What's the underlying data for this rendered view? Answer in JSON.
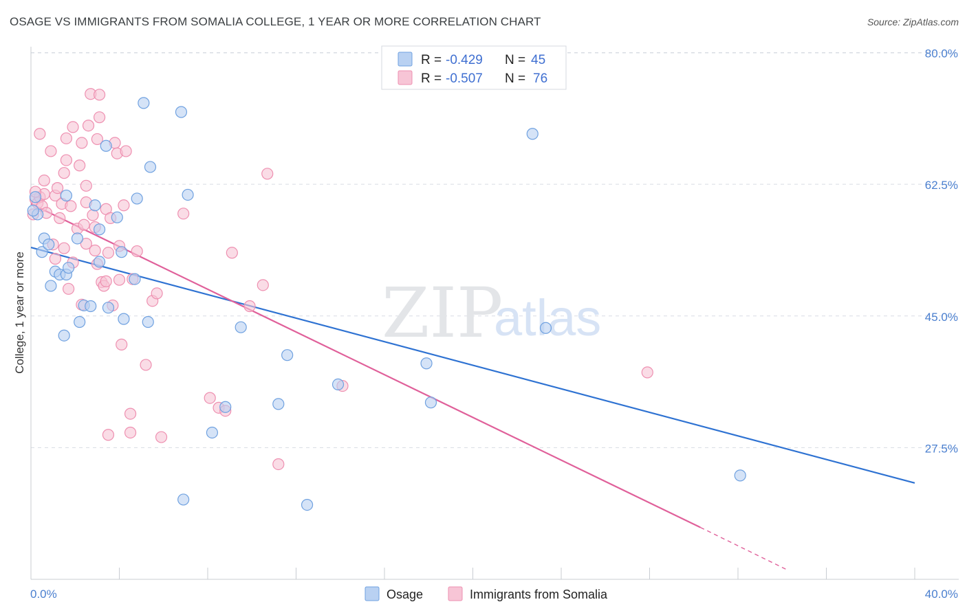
{
  "title": "OSAGE VS IMMIGRANTS FROM SOMALIA COLLEGE, 1 YEAR OR MORE CORRELATION CHART",
  "source": "Source: ZipAtlas.com",
  "watermark": {
    "zip": "ZIP",
    "atlas": "atlas"
  },
  "colors": {
    "osage": "#6fa1e0",
    "osage_fill": "#b9d1f2",
    "osage_line": "#2e72d2",
    "somalia": "#ee8fb0",
    "somalia_fill": "#f7c5d6",
    "somalia_line": "#e0609a",
    "axis_text": "#4a7fcf",
    "grid": "#d8dce3"
  },
  "legend": {
    "rows": [
      {
        "r_label": "R =",
        "r_value": "-0.429",
        "n_label": "N =",
        "n_value": "45"
      },
      {
        "r_label": "R =",
        "r_value": "-0.507",
        "n_label": "N =",
        "n_value": "76"
      }
    ]
  },
  "chart_data": {
    "type": "scatter",
    "title": "OSAGE VS IMMIGRANTS FROM SOMALIA COLLEGE, 1 YEAR OR MORE CORRELATION CHART",
    "xlabel": "",
    "ylabel": "College, 1 year or more",
    "xlim": [
      0,
      40
    ],
    "ylim": [
      10,
      83
    ],
    "x_tick_labels": [
      "0.0%",
      "40.0%"
    ],
    "y_ticks": [
      27.5,
      45.0,
      62.5,
      80.0
    ],
    "y_tick_labels": [
      "27.5%",
      "45.0%",
      "62.5%",
      "80.0%"
    ],
    "grid": true,
    "legend_position": "top-center",
    "series": [
      {
        "name": "Osage",
        "points": [
          [
            0.2,
            60.8
          ],
          [
            0.3,
            58.5
          ],
          [
            0.5,
            53.5
          ],
          [
            0.6,
            55.3
          ],
          [
            0.8,
            54.5
          ],
          [
            0.9,
            49.0
          ],
          [
            1.1,
            50.9
          ],
          [
            1.3,
            50.5
          ],
          [
            1.5,
            42.4
          ],
          [
            1.6,
            50.5
          ],
          [
            1.7,
            51.4
          ],
          [
            1.6,
            61.0
          ],
          [
            2.1,
            55.3
          ],
          [
            2.2,
            44.2
          ],
          [
            2.4,
            46.4
          ],
          [
            2.7,
            46.3
          ],
          [
            2.9,
            59.7
          ],
          [
            3.1,
            52.2
          ],
          [
            3.1,
            56.5
          ],
          [
            3.4,
            67.6
          ],
          [
            3.5,
            46.1
          ],
          [
            3.9,
            58.1
          ],
          [
            4.1,
            53.5
          ],
          [
            4.2,
            44.6
          ],
          [
            4.7,
            49.9
          ],
          [
            4.8,
            60.6
          ],
          [
            5.1,
            73.3
          ],
          [
            5.3,
            44.2
          ],
          [
            5.4,
            64.8
          ],
          [
            6.8,
            72.1
          ],
          [
            6.9,
            20.6
          ],
          [
            7.1,
            61.1
          ],
          [
            8.2,
            29.5
          ],
          [
            8.8,
            32.9
          ],
          [
            9.5,
            43.5
          ],
          [
            11.2,
            33.3
          ],
          [
            11.6,
            39.8
          ],
          [
            12.5,
            19.9
          ],
          [
            13.9,
            35.9
          ],
          [
            17.9,
            38.7
          ],
          [
            18.1,
            33.5
          ],
          [
            22.7,
            69.2
          ],
          [
            23.3,
            43.4
          ],
          [
            32.1,
            23.8
          ],
          [
            0.1,
            59.0
          ]
        ]
      },
      {
        "name": "Immigrants from Somalia",
        "points": [
          [
            0.1,
            58.5
          ],
          [
            0.2,
            60.5
          ],
          [
            0.3,
            60.0
          ],
          [
            0.4,
            60.8
          ],
          [
            0.4,
            69.2
          ],
          [
            0.5,
            59.6
          ],
          [
            0.6,
            61.2
          ],
          [
            0.6,
            63.0
          ],
          [
            0.7,
            58.7
          ],
          [
            0.9,
            66.9
          ],
          [
            1.0,
            54.5
          ],
          [
            1.1,
            52.6
          ],
          [
            1.1,
            61.0
          ],
          [
            1.2,
            62.0
          ],
          [
            1.3,
            58.0
          ],
          [
            1.4,
            59.9
          ],
          [
            1.5,
            54.0
          ],
          [
            1.5,
            64.0
          ],
          [
            1.6,
            68.6
          ],
          [
            1.6,
            65.7
          ],
          [
            1.7,
            48.6
          ],
          [
            1.8,
            59.6
          ],
          [
            1.9,
            52.1
          ],
          [
            1.9,
            70.1
          ],
          [
            2.1,
            56.6
          ],
          [
            2.2,
            65.0
          ],
          [
            2.3,
            68.0
          ],
          [
            2.3,
            46.5
          ],
          [
            2.4,
            57.1
          ],
          [
            2.5,
            60.1
          ],
          [
            2.5,
            62.3
          ],
          [
            2.5,
            54.6
          ],
          [
            2.6,
            70.3
          ],
          [
            2.7,
            74.5
          ],
          [
            2.8,
            58.4
          ],
          [
            2.9,
            53.7
          ],
          [
            2.9,
            56.8
          ],
          [
            3.0,
            51.9
          ],
          [
            3.0,
            68.5
          ],
          [
            3.1,
            74.4
          ],
          [
            3.1,
            71.4
          ],
          [
            3.2,
            49.5
          ],
          [
            3.3,
            49.0
          ],
          [
            3.4,
            49.6
          ],
          [
            3.4,
            59.2
          ],
          [
            3.5,
            53.4
          ],
          [
            3.5,
            29.2
          ],
          [
            3.6,
            58.0
          ],
          [
            3.7,
            46.4
          ],
          [
            3.8,
            68.0
          ],
          [
            3.9,
            66.6
          ],
          [
            4.0,
            54.3
          ],
          [
            4.0,
            49.8
          ],
          [
            4.1,
            41.2
          ],
          [
            4.2,
            59.7
          ],
          [
            4.3,
            66.9
          ],
          [
            4.5,
            32.0
          ],
          [
            4.5,
            29.5
          ],
          [
            4.6,
            49.9
          ],
          [
            4.8,
            53.6
          ],
          [
            5.2,
            38.5
          ],
          [
            5.5,
            47.0
          ],
          [
            5.7,
            48.0
          ],
          [
            5.9,
            28.9
          ],
          [
            6.9,
            58.6
          ],
          [
            8.1,
            34.1
          ],
          [
            8.5,
            32.8
          ],
          [
            8.8,
            32.4
          ],
          [
            9.1,
            53.4
          ],
          [
            9.9,
            46.3
          ],
          [
            10.5,
            49.1
          ],
          [
            10.7,
            63.9
          ],
          [
            11.2,
            25.3
          ],
          [
            14.1,
            35.7
          ],
          [
            27.9,
            37.5
          ],
          [
            0.2,
            61.5
          ]
        ]
      }
    ],
    "trend_lines": [
      {
        "name": "Osage",
        "x": [
          0,
          40
        ],
        "y": [
          54.1,
          22.8
        ]
      },
      {
        "name": "Immigrants from Somalia",
        "x": [
          0,
          30.3
        ],
        "y": [
          59.9,
          16.9
        ],
        "dashed_to": [
          34.2,
          11.3
        ]
      }
    ]
  },
  "bottom_legend": [
    {
      "label": "Osage"
    },
    {
      "label": "Immigrants from Somalia"
    }
  ]
}
